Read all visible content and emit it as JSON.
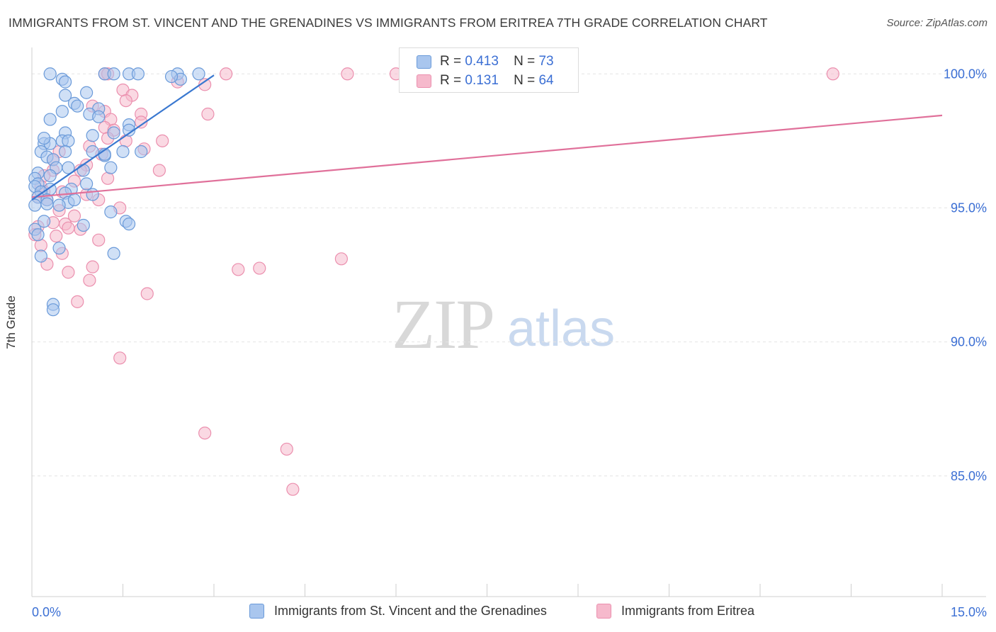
{
  "title": "IMMIGRANTS FROM ST. VINCENT AND THE GRENADINES VS IMMIGRANTS FROM ERITREA 7TH GRADE CORRELATION CHART",
  "source": "Source: ZipAtlas.com",
  "watermark": {
    "zip": "ZIP",
    "atlas": "atlas"
  },
  "legend": {
    "blue": {
      "r_label": "R =",
      "r_value": "0.413",
      "n_label": "N =",
      "n_value": "73"
    },
    "pink": {
      "r_label": "R =",
      "r_value": "0.131",
      "n_label": "N =",
      "n_value": "64"
    }
  },
  "colors": {
    "blue_fill": "#a9c6ee",
    "blue_stroke": "#6a9ad9",
    "blue_line": "#3a78d0",
    "pink_fill": "#f6b9cc",
    "pink_stroke": "#eb8fae",
    "pink_line": "#e0709a",
    "tick_text": "#3b6fd4",
    "grid": "#e4e4e4"
  },
  "chart_data": {
    "type": "scatter",
    "title": "IMMIGRANTS FROM ST. VINCENT AND THE GRENADINES VS IMMIGRANTS FROM ERITREA 7TH GRADE CORRELATION CHART",
    "xlabel": "",
    "ylabel": "7th Grade",
    "xlim": [
      0,
      15
    ],
    "ylim": [
      80.5,
      100.8
    ],
    "x_tick_labels": [
      "0.0%",
      "15.0%"
    ],
    "y_ticks": [
      85,
      90,
      95,
      100
    ],
    "y_tick_labels": [
      "85.0%",
      "90.0%",
      "95.0%",
      "100.0%"
    ],
    "grid": true,
    "legend_position": "top-center",
    "series": [
      {
        "name": "Immigrants from St. Vincent and the Grenadines",
        "color": "#a9c6ee",
        "r": 0.413,
        "n": 73,
        "trend": {
          "x": [
            0.0,
            3.0
          ],
          "y": [
            95.3,
            99.95
          ]
        },
        "points": [
          [
            0.3,
            100
          ],
          [
            0.5,
            99.8
          ],
          [
            1.2,
            100
          ],
          [
            1.35,
            100
          ],
          [
            1.6,
            100
          ],
          [
            1.75,
            100
          ],
          [
            2.4,
            100
          ],
          [
            2.75,
            100
          ],
          [
            2.45,
            99.8
          ],
          [
            0.55,
            99.7
          ],
          [
            0.55,
            99.2
          ],
          [
            0.9,
            99.3
          ],
          [
            0.7,
            98.9
          ],
          [
            0.75,
            98.8
          ],
          [
            1.1,
            98.7
          ],
          [
            0.5,
            98.6
          ],
          [
            0.95,
            98.5
          ],
          [
            1.1,
            98.4
          ],
          [
            0.3,
            98.3
          ],
          [
            1.6,
            98.1
          ],
          [
            0.55,
            97.8
          ],
          [
            1.0,
            97.7
          ],
          [
            1.35,
            97.8
          ],
          [
            0.5,
            97.5
          ],
          [
            0.2,
            97.4
          ],
          [
            0.6,
            97.5
          ],
          [
            0.3,
            97.4
          ],
          [
            0.15,
            97.1
          ],
          [
            0.55,
            97.1
          ],
          [
            1.0,
            97.1
          ],
          [
            1.5,
            97.1
          ],
          [
            1.8,
            97.1
          ],
          [
            0.25,
            96.9
          ],
          [
            0.35,
            96.8
          ],
          [
            1.2,
            96.95
          ],
          [
            0.4,
            96.5
          ],
          [
            0.6,
            96.5
          ],
          [
            0.85,
            96.4
          ],
          [
            1.3,
            96.5
          ],
          [
            0.1,
            96.3
          ],
          [
            0.3,
            96.2
          ],
          [
            0.05,
            96.1
          ],
          [
            0.1,
            95.9
          ],
          [
            0.9,
            95.9
          ],
          [
            0.05,
            95.8
          ],
          [
            0.3,
            95.7
          ],
          [
            0.65,
            95.7
          ],
          [
            0.15,
            95.6
          ],
          [
            0.55,
            95.55
          ],
          [
            1.0,
            95.5
          ],
          [
            0.1,
            95.4
          ],
          [
            0.25,
            95.3
          ],
          [
            0.6,
            95.2
          ],
          [
            0.25,
            95.15
          ],
          [
            0.45,
            95.1
          ],
          [
            0.05,
            95.1
          ],
          [
            1.3,
            94.85
          ],
          [
            0.2,
            94.5
          ],
          [
            1.55,
            94.5
          ],
          [
            1.6,
            94.4
          ],
          [
            0.85,
            94.35
          ],
          [
            0.05,
            94.2
          ],
          [
            0.1,
            94.0
          ],
          [
            0.45,
            93.5
          ],
          [
            1.35,
            93.3
          ],
          [
            0.15,
            93.2
          ],
          [
            0.35,
            91.4
          ],
          [
            0.35,
            91.2
          ],
          [
            1.2,
            97.0
          ],
          [
            2.3,
            99.9
          ],
          [
            0.2,
            97.6
          ],
          [
            0.7,
            95.3
          ],
          [
            1.6,
            97.9
          ]
        ]
      },
      {
        "name": "Immigrants from Eritrea",
        "color": "#f6b9cc",
        "r": 0.131,
        "n": 64,
        "trend": {
          "x": [
            0.0,
            15.0
          ],
          "y": [
            95.4,
            98.45
          ]
        },
        "points": [
          [
            1.2,
            100
          ],
          [
            1.25,
            100
          ],
          [
            3.2,
            100
          ],
          [
            5.2,
            100
          ],
          [
            6.0,
            100
          ],
          [
            6.7,
            100
          ],
          [
            13.2,
            100
          ],
          [
            2.4,
            99.7
          ],
          [
            2.85,
            99.6
          ],
          [
            1.5,
            99.4
          ],
          [
            1.65,
            99.2
          ],
          [
            1.55,
            99.0
          ],
          [
            1.0,
            98.8
          ],
          [
            1.2,
            98.6
          ],
          [
            1.8,
            98.5
          ],
          [
            2.9,
            98.5
          ],
          [
            1.3,
            98.3
          ],
          [
            1.8,
            98.2
          ],
          [
            1.2,
            98.0
          ],
          [
            1.35,
            97.9
          ],
          [
            1.25,
            97.6
          ],
          [
            1.55,
            97.5
          ],
          [
            2.15,
            97.5
          ],
          [
            0.95,
            97.3
          ],
          [
            1.85,
            97.2
          ],
          [
            0.45,
            97.1
          ],
          [
            1.15,
            97.0
          ],
          [
            0.35,
            96.8
          ],
          [
            0.9,
            96.6
          ],
          [
            0.35,
            96.4
          ],
          [
            0.8,
            96.4
          ],
          [
            2.1,
            96.4
          ],
          [
            0.2,
            96.2
          ],
          [
            1.25,
            96.1
          ],
          [
            0.7,
            96.0
          ],
          [
            0.15,
            95.8
          ],
          [
            0.2,
            95.6
          ],
          [
            0.5,
            95.6
          ],
          [
            0.9,
            95.5
          ],
          [
            0.1,
            95.4
          ],
          [
            0.25,
            95.3
          ],
          [
            1.1,
            95.3
          ],
          [
            1.45,
            95.0
          ],
          [
            0.45,
            94.9
          ],
          [
            0.7,
            94.7
          ],
          [
            0.35,
            94.45
          ],
          [
            0.55,
            94.4
          ],
          [
            0.6,
            94.25
          ],
          [
            0.8,
            94.2
          ],
          [
            0.1,
            94.3
          ],
          [
            0.05,
            94.0
          ],
          [
            0.4,
            93.95
          ],
          [
            1.1,
            93.8
          ],
          [
            0.15,
            93.6
          ],
          [
            0.5,
            93.3
          ],
          [
            0.25,
            92.9
          ],
          [
            1.0,
            92.8
          ],
          [
            3.4,
            92.7
          ],
          [
            3.75,
            92.75
          ],
          [
            5.1,
            93.1
          ],
          [
            0.6,
            92.6
          ],
          [
            0.95,
            92.3
          ],
          [
            1.9,
            91.8
          ],
          [
            0.75,
            91.5
          ]
        ],
        "outliers_low": [
          [
            1.45,
            89.4
          ],
          [
            2.85,
            86.6
          ],
          [
            4.2,
            86.0
          ],
          [
            4.3,
            84.5
          ]
        ]
      }
    ]
  },
  "bottom_legend": {
    "blue_label": "Immigrants from St. Vincent and the Grenadines",
    "pink_label": "Immigrants from Eritrea"
  }
}
